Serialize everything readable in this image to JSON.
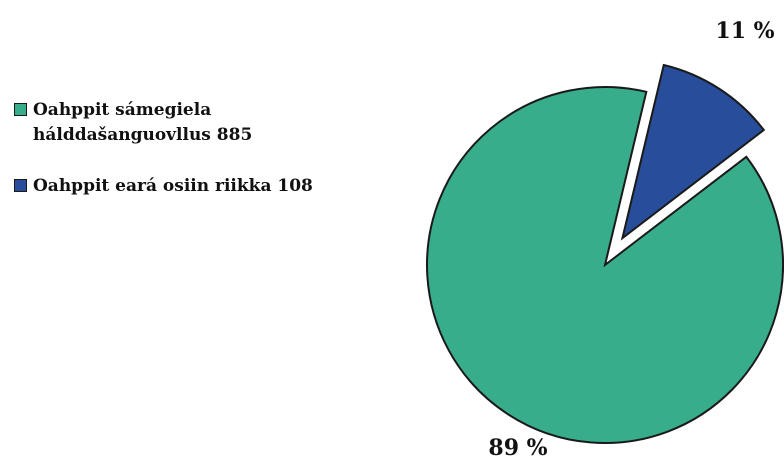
{
  "chart_data": {
    "type": "pie",
    "title": "",
    "series": [
      {
        "name": "Oahppit sámegiela\nhálddašanguovllus 885",
        "value": 885,
        "percent": 89,
        "label": "89 %",
        "color": "#38ad8c",
        "exploded": false
      },
      {
        "name": "Oahppit eará osiin riikka 108",
        "value": 108,
        "percent": 11,
        "label": "11 %",
        "color": "#284d9a",
        "exploded": true
      }
    ],
    "legend_position": "left"
  }
}
